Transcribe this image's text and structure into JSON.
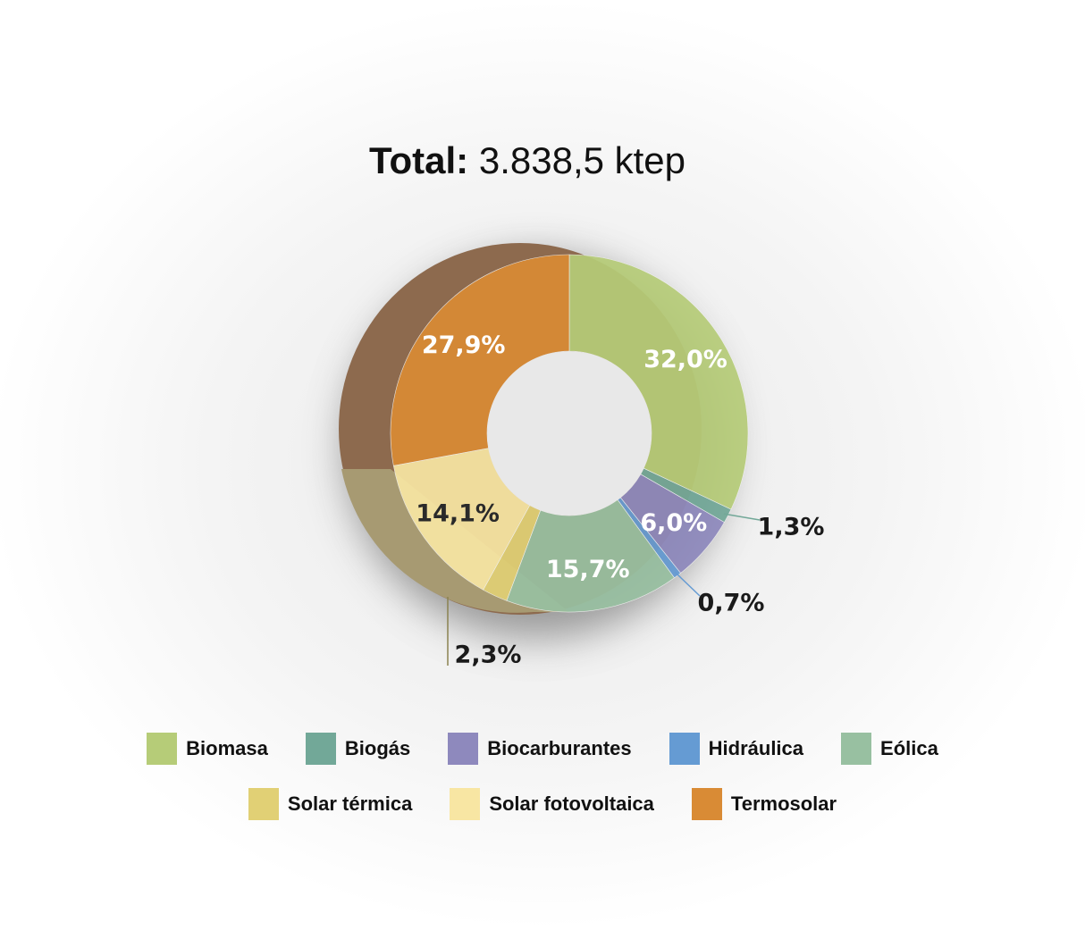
{
  "title": {
    "bold": "Total:",
    "value": "3.838,5 ktep"
  },
  "chart_data": {
    "type": "pie",
    "donut": true,
    "title": "Total: 3.838,5 ktep",
    "categories": [
      "Biomasa",
      "Biogás",
      "Biocarburantes",
      "Hidráulica",
      "Eólica",
      "Solar térmica",
      "Solar fotovoltaica",
      "Termosolar"
    ],
    "values": [
      32.0,
      1.3,
      6.0,
      0.7,
      15.7,
      2.3,
      14.1,
      27.9
    ],
    "labels": [
      "32,0%",
      "1,3%",
      "6,0%",
      "0,7%",
      "15,7%",
      "2,3%",
      "14,1%",
      "27,9%"
    ],
    "colors": [
      "#b6cc78",
      "#72a898",
      "#8e89bd",
      "#659bd3",
      "#98c0a1",
      "#e1d075",
      "#f8e6a3",
      "#d98b35"
    ],
    "legend_placement": "bottom"
  }
}
